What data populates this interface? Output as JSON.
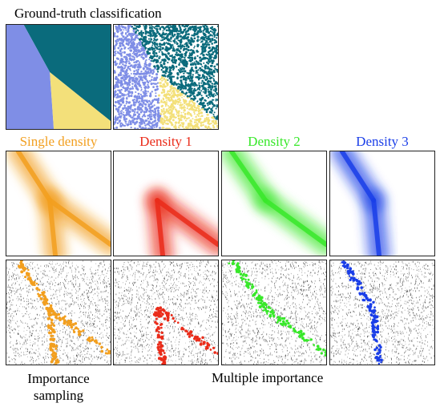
{
  "top_title": "Ground-truth classification",
  "columns": [
    {
      "label": "Single density",
      "color": "#f29f1f"
    },
    {
      "label": "Density 1",
      "color": "#ea2c1a"
    },
    {
      "label": "Density 2",
      "color": "#38e82a"
    },
    {
      "label": "Density 3",
      "color": "#1a3ee8"
    }
  ],
  "regions": {
    "left": "#7f8ee6",
    "right": "#0a6b7c",
    "bottom": "#f3e07a"
  },
  "bottom_left_label": [
    "Importance",
    "sampling"
  ],
  "bottom_right_label": "Multiple importance"
}
